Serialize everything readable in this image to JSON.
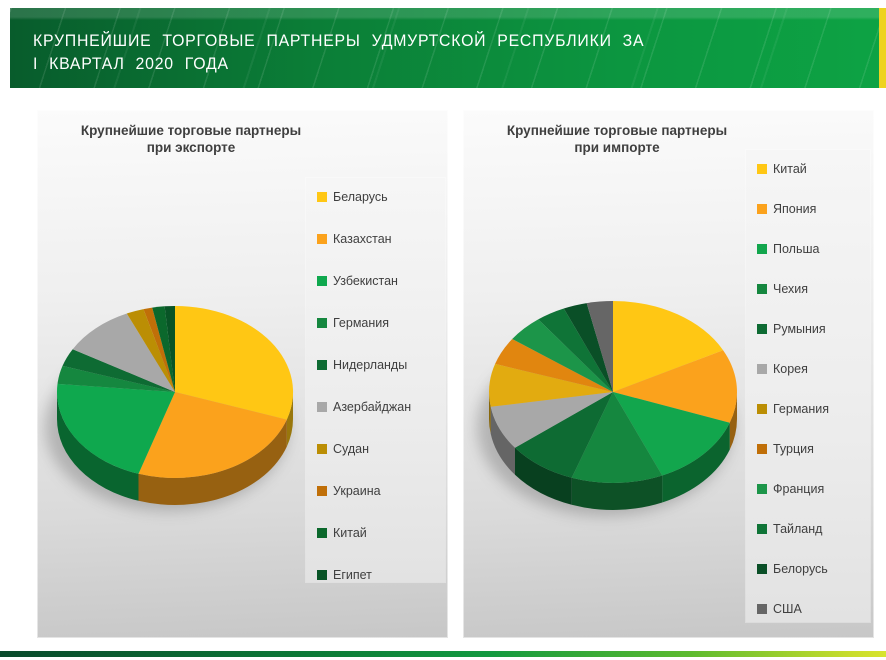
{
  "header": {
    "title_line1": "КРУПНЕЙШИЕ ТОРГОВЫЕ ПАРТНЕРЫ УДМУРТСКОЙ РЕСПУБЛИКИ ЗА",
    "title_line2": "I КВАРТАЛ 2020 ГОДА",
    "banner_gradient": [
      "#085C2C",
      "#0C9640",
      "#0DA344"
    ],
    "accent_strip_color": "#EED31F",
    "text_color": "#FFFFFF"
  },
  "footer": {
    "gradient_colors": [
      "#0A4A2C",
      "#129940",
      "#C8DD2E"
    ]
  },
  "chart_data": [
    {
      "type": "pie",
      "style": "3d",
      "title_line1": "Крупнейшие торговые партнеры",
      "title_line2": "при экспорте",
      "legend_position": "right",
      "values_are": "estimated percent share",
      "slices": [
        {
          "label": "Беларусь",
          "value": 30.2,
          "color": "#FFC714"
        },
        {
          "label": "Казахстан",
          "value": 24.8,
          "color": "#FBA21C"
        },
        {
          "label": "Узбекистан",
          "value": 21.5,
          "color": "#0FA84E"
        },
        {
          "label": "Германия",
          "value": 3.4,
          "color": "#15873F"
        },
        {
          "label": "Нидерланды",
          "value": 3.4,
          "color": "#0E6B33"
        },
        {
          "label": "Азербайджан",
          "value": 10.0,
          "color": "#A8A8A8"
        },
        {
          "label": "Судан",
          "value": 2.4,
          "color": "#BB8E04"
        },
        {
          "label": "Украина",
          "value": 1.2,
          "color": "#C06F08"
        },
        {
          "label": "Китай",
          "value": 1.7,
          "color": "#0B682C"
        },
        {
          "label": "Египет",
          "value": 1.4,
          "color": "#085426"
        }
      ]
    },
    {
      "type": "pie",
      "style": "3d",
      "title_line1": "Крупнейшие торговые партнеры",
      "title_line2": "при импорте",
      "legend_position": "right",
      "values_are": "estimated percent share",
      "slices": [
        {
          "label": "Китай",
          "value": 17.4,
          "color": "#FFC714"
        },
        {
          "label": "Япония",
          "value": 13.1,
          "color": "#FBA21C"
        },
        {
          "label": "Польша",
          "value": 13.0,
          "color": "#12A64D"
        },
        {
          "label": "Чехия",
          "value": 11.9,
          "color": "#15873F"
        },
        {
          "label": "Румыния",
          "value": 9.1,
          "color": "#0E6B33"
        },
        {
          "label": "Корея",
          "value": 7.9,
          "color": "#A8A8A8"
        },
        {
          "label": "Германия",
          "value": 7.6,
          "color": "#BB8E04",
          "pie_color": "#E2AB10"
        },
        {
          "label": "Турция",
          "value": 4.9,
          "color": "#C06F08",
          "pie_color": "#E1860F"
        },
        {
          "label": "Франция",
          "value": 4.8,
          "color": "#1C9549"
        },
        {
          "label": "Тайланд",
          "value": 3.8,
          "color": "#0F7437"
        },
        {
          "label": "Белорусь",
          "value": 3.1,
          "color": "#0A4F27"
        },
        {
          "label": "США",
          "value": 3.4,
          "color": "#666666"
        }
      ]
    }
  ]
}
